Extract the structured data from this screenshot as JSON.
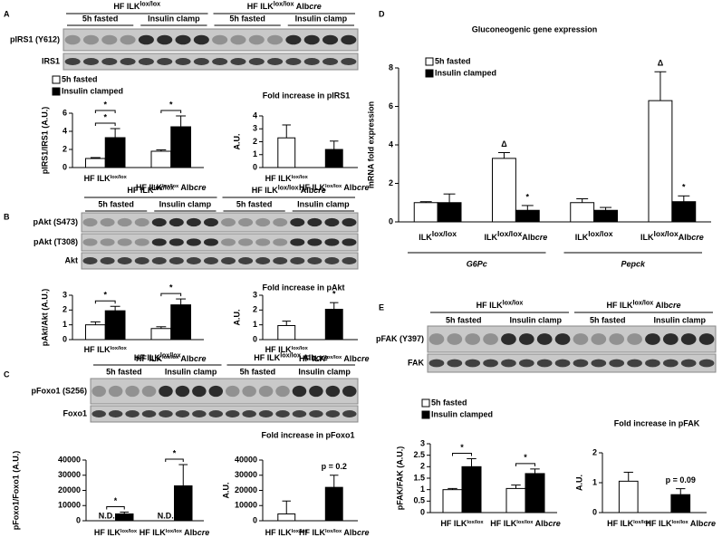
{
  "panels": [
    "A",
    "B",
    "C",
    "D",
    "E"
  ],
  "blots": [
    {
      "groups": [
        [
          "HF ILK",
          "lox/lox"
        ],
        [
          "HF ILK",
          "lox/lox",
          " Alb",
          "cre"
        ]
      ],
      "conditions": [
        "5h fasted",
        "Insulin clamp",
        "5h fasted",
        "Insulin clamp"
      ],
      "rows": [
        "pIRS1 (Y612)",
        "IRS1"
      ]
    },
    {
      "groups": [
        [
          "HF ILK",
          "lox/lox"
        ],
        [
          "HF ILK",
          "lox/lox",
          " Alb",
          "cre"
        ]
      ],
      "conditions": [
        "5h fasted",
        "Insulin clamp",
        "5h fasted",
        "Insulin clamp"
      ],
      "rows": [
        "pAkt (S473)",
        "pAkt (T308)",
        "Akt"
      ]
    },
    {
      "groups": [
        [
          "HF ILK",
          "lox/lox"
        ],
        [
          "HF ILK",
          "lox/lox",
          " Alb",
          "cre"
        ]
      ],
      "conditions": [
        "5h fasted",
        "Insulin clamp",
        "5h fasted",
        "Insulin clamp"
      ],
      "rows": [
        "pFoxo1 (S256)",
        "Foxo1"
      ]
    },
    {
      "groups": [
        [
          "HF ILK",
          "lox/lox"
        ],
        [
          "HF ILK",
          "lox/lox",
          " Alb",
          "cre"
        ]
      ],
      "conditions": [
        "5h fasted",
        "Insulin clamp",
        "5h fasted",
        "Insulin clamp"
      ],
      "rows": [
        "pFAK (Y397)",
        "FAK"
      ]
    }
  ],
  "chart_data": [
    {
      "type": "bar",
      "ylabel": "pIRS1/IRS1 (A.U.)",
      "categories": [
        [
          "HF ILK",
          "lox/lox"
        ],
        [
          "HF ILK",
          "lox/lox",
          " Alb",
          "cre"
        ]
      ],
      "series": [
        {
          "name": "5h fasted",
          "color": "#ffffff",
          "values": [
            1.0,
            1.8
          ],
          "errors": [
            0.1,
            0.15
          ]
        },
        {
          "name": "Insulin clamped",
          "color": "#000000",
          "values": [
            3.3,
            4.5
          ],
          "errors": [
            1.0,
            1.2
          ]
        }
      ],
      "ylim": [
        0,
        6
      ],
      "yticks": [
        0,
        2,
        4,
        6
      ],
      "annotations": [
        "*",
        "*",
        "*"
      ]
    },
    {
      "type": "bar",
      "title": "Fold increase in pIRS1",
      "ylabel": "A.U.",
      "categories": [
        [
          "HF ILK",
          "lox/lox"
        ],
        [
          "HF ILK",
          "lox/lox",
          " Alb",
          "cre"
        ]
      ],
      "values": [
        2.3,
        1.4
      ],
      "errors": [
        1.0,
        0.65
      ],
      "colors": [
        "#ffffff",
        "#000000"
      ],
      "ylim": [
        0,
        4
      ],
      "yticks": [
        0,
        1,
        2,
        3,
        4
      ]
    },
    {
      "type": "bar",
      "ylabel": "pAkt/Akt (A.U.)",
      "categories": [
        [
          "HF ILK",
          "lox/lox"
        ],
        [
          "HF ILK",
          "lox/lox",
          " Alb",
          "cre"
        ]
      ],
      "series": [
        {
          "color": "#ffffff",
          "values": [
            1.0,
            0.75
          ],
          "errors": [
            0.2,
            0.12
          ]
        },
        {
          "color": "#000000",
          "values": [
            1.95,
            2.35
          ],
          "errors": [
            0.3,
            0.4
          ]
        }
      ],
      "ylim": [
        0,
        3
      ],
      "yticks": [
        0,
        1,
        2,
        3
      ],
      "annotations": [
        "*",
        "*"
      ]
    },
    {
      "type": "bar",
      "title": "Fold increase in pAkt",
      "ylabel": "A.U.",
      "categories": [
        [
          "HF ILK",
          "lox/lox"
        ],
        [
          "HF ILK",
          "lox/lox",
          " Alb",
          "cre"
        ]
      ],
      "values": [
        0.95,
        2.05
      ],
      "errors": [
        0.3,
        0.45
      ],
      "colors": [
        "#ffffff",
        "#000000"
      ],
      "ylim": [
        0,
        3
      ],
      "yticks": [
        0,
        1,
        2,
        3
      ],
      "annotations": [
        "*"
      ]
    },
    {
      "type": "bar",
      "ylabel": "pFoxo1/Foxo1 (A.U.)",
      "categories": [
        [
          "HF ILK",
          "lox/lox"
        ],
        [
          "HF ILK",
          "lox/lox",
          " Alb",
          "cre"
        ]
      ],
      "series": [
        {
          "color": "#ffffff",
          "values": [
            null,
            null
          ],
          "value_labels": [
            "N.D.",
            "N.D."
          ],
          "errors": [
            null,
            null
          ]
        },
        {
          "color": "#000000",
          "values": [
            4500,
            23000
          ],
          "errors": [
            1200,
            14000
          ]
        }
      ],
      "ylim": [
        0,
        40000
      ],
      "yticks": [
        0,
        10000,
        20000,
        30000,
        40000
      ],
      "annotations": [
        "*",
        "*"
      ]
    },
    {
      "type": "bar",
      "title": "Fold increase in pFoxo1",
      "ylabel": "A.U.",
      "categories": [
        [
          "HF ILK",
          "lox/lox"
        ],
        [
          "HF ILK",
          "lox/lox",
          " Alb",
          "cre"
        ]
      ],
      "values": [
        4500,
        22000
      ],
      "errors": [
        8500,
        8000
      ],
      "colors": [
        "#ffffff",
        "#000000"
      ],
      "ylim": [
        0,
        40000
      ],
      "yticks": [
        0,
        10000,
        20000,
        30000,
        40000
      ],
      "annotations": [
        "p = 0.2"
      ]
    },
    {
      "type": "bar",
      "title": "Gluconeogenic gene expression",
      "ylabel": "mRNA fold expression",
      "categories": [
        [
          "ILK",
          "lox/lox"
        ],
        [
          "ILK",
          "lox/lox",
          "Alb",
          "cre"
        ],
        [
          "ILK",
          "lox/lox"
        ],
        [
          "ILK",
          "lox/lox",
          "Alb",
          "cre"
        ]
      ],
      "groups": [
        "G6Pc",
        "Pepck"
      ],
      "series": [
        {
          "name": "5h fasted",
          "color": "#ffffff",
          "values": [
            1.0,
            3.3,
            1.0,
            6.3
          ],
          "errors": [
            0.05,
            0.3,
            0.2,
            1.5
          ]
        },
        {
          "name": "Insulin clamped",
          "color": "#000000",
          "values": [
            1.0,
            0.6,
            0.6,
            1.05
          ],
          "errors": [
            0.45,
            0.25,
            0.15,
            0.3
          ]
        }
      ],
      "ylim": [
        0,
        8
      ],
      "yticks": [
        0,
        2,
        4,
        6,
        8
      ],
      "annotations": [
        "Δ",
        "*",
        "Δ",
        "*"
      ]
    },
    {
      "type": "bar",
      "ylabel": "pFAK/FAK (A.U.)",
      "categories": [
        [
          "HF ILK",
          "lox/lox"
        ],
        [
          "HF ILK",
          "lox/lox",
          " Alb",
          "cre"
        ]
      ],
      "series": [
        {
          "name": "5h fasted",
          "color": "#ffffff",
          "values": [
            1.0,
            1.05
          ],
          "errors": [
            0.05,
            0.15
          ]
        },
        {
          "name": "Insulin clamped",
          "color": "#000000",
          "values": [
            2.0,
            1.7
          ],
          "errors": [
            0.35,
            0.2
          ]
        }
      ],
      "ylim": [
        0,
        3
      ],
      "yticks": [
        0,
        0.5,
        1,
        1.5,
        2,
        2.5,
        3
      ],
      "annotations": [
        "*",
        "*"
      ]
    },
    {
      "type": "bar",
      "title": "Fold increase in pFAK",
      "ylabel": "A.U.",
      "categories": [
        [
          "HF ILK",
          "lox/lox"
        ],
        [
          "HF ILK",
          "lox/lox",
          " Alb",
          "cre"
        ]
      ],
      "values": [
        1.05,
        0.6
      ],
      "errors": [
        0.3,
        0.2
      ],
      "colors": [
        "#ffffff",
        "#000000"
      ],
      "ylim": [
        0,
        2
      ],
      "yticks": [
        0,
        1,
        2
      ],
      "annotations": [
        "p = 0.09"
      ]
    }
  ]
}
